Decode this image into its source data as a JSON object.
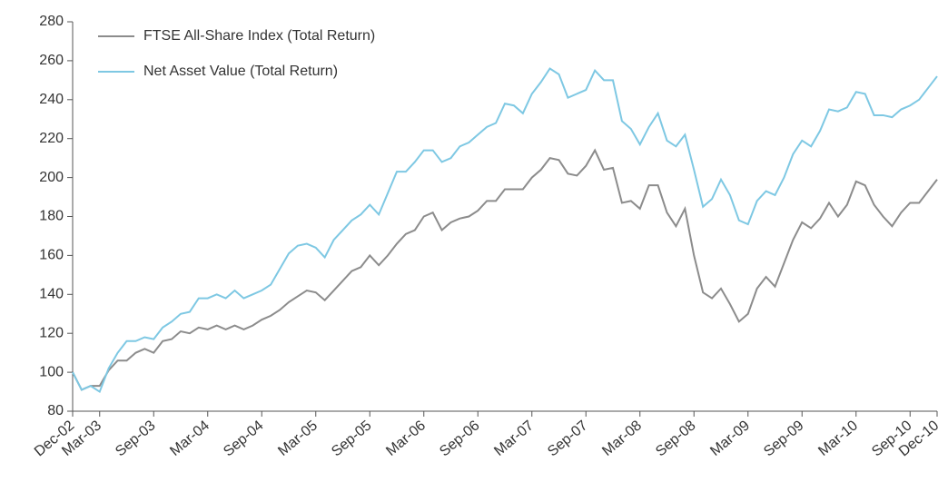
{
  "chart_data": {
    "type": "line",
    "categories": [
      "Dec-02",
      null,
      null,
      "Mar-03",
      null,
      null,
      null,
      null,
      null,
      "Sep-03",
      null,
      null,
      null,
      null,
      null,
      "Mar-04",
      null,
      null,
      null,
      null,
      null,
      "Sep-04",
      null,
      null,
      null,
      null,
      null,
      "Mar-05",
      null,
      null,
      null,
      null,
      null,
      "Sep-05",
      null,
      null,
      null,
      null,
      null,
      "Mar-06",
      null,
      null,
      null,
      null,
      null,
      "Sep-06",
      null,
      null,
      null,
      null,
      null,
      "Mar-07",
      null,
      null,
      null,
      null,
      null,
      "Sep-07",
      null,
      null,
      null,
      null,
      null,
      "Mar-08",
      null,
      null,
      null,
      null,
      null,
      "Sep-08",
      null,
      null,
      null,
      null,
      null,
      "Mar-09",
      null,
      null,
      null,
      null,
      null,
      "Sep-09",
      null,
      null,
      null,
      null,
      null,
      "Mar-10",
      null,
      null,
      null,
      null,
      null,
      "Sep-10",
      null,
      null,
      "Dec-10"
    ],
    "series": [
      {
        "name": "FTSE All-Share Index (Total Return)",
        "color": "#8c8c8c",
        "values": [
          100,
          91,
          93,
          93,
          101,
          106,
          106,
          110,
          112,
          110,
          116,
          117,
          121,
          120,
          123,
          122,
          124,
          122,
          124,
          122,
          124,
          127,
          129,
          132,
          136,
          139,
          142,
          141,
          137,
          142,
          147,
          152,
          154,
          160,
          155,
          160,
          166,
          171,
          173,
          180,
          182,
          173,
          177,
          179,
          180,
          183,
          188,
          188,
          194,
          194,
          194,
          200,
          204,
          210,
          209,
          202,
          201,
          206,
          214,
          204,
          205,
          187,
          188,
          184,
          196,
          196,
          182,
          175,
          184,
          160,
          141,
          138,
          143,
          135,
          126,
          130,
          143,
          149,
          144,
          156,
          168,
          177,
          174,
          179,
          187,
          180,
          186,
          198,
          196,
          186,
          180,
          175,
          182,
          187,
          187,
          193,
          199
        ]
      },
      {
        "name": "Net Asset Value (Total Return)",
        "color": "#7ec8e3",
        "values": [
          100,
          91,
          93,
          90,
          102,
          110,
          116,
          116,
          118,
          117,
          123,
          126,
          130,
          131,
          138,
          138,
          140,
          138,
          142,
          138,
          140,
          142,
          145,
          153,
          161,
          165,
          166,
          164,
          159,
          168,
          173,
          178,
          181,
          186,
          181,
          192,
          203,
          203,
          208,
          214,
          214,
          208,
          210,
          216,
          218,
          222,
          226,
          228,
          238,
          237,
          233,
          243,
          249,
          256,
          253,
          241,
          243,
          245,
          255,
          250,
          250,
          229,
          225,
          217,
          226,
          233,
          219,
          216,
          222,
          204,
          185,
          189,
          199,
          191,
          178,
          176,
          188,
          193,
          191,
          200,
          212,
          219,
          216,
          224,
          235,
          234,
          236,
          244,
          243,
          232,
          232,
          231,
          235,
          237,
          240,
          246,
          252
        ]
      }
    ],
    "ylim": [
      80,
      280
    ],
    "yticks": [
      80,
      100,
      120,
      140,
      160,
      180,
      200,
      220,
      240,
      260,
      280
    ],
    "legend": "upper left"
  }
}
